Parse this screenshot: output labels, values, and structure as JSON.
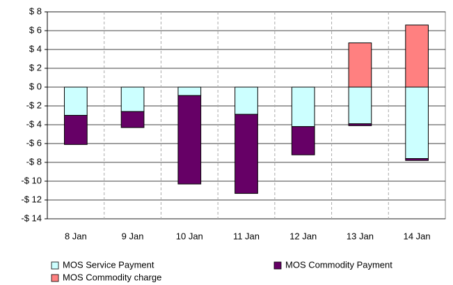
{
  "chart_data": {
    "type": "stacked-bar",
    "categories": [
      "8 Jan",
      "9 Jan",
      "10 Jan",
      "11 Jan",
      "12 Jan",
      "13 Jan",
      "14 Jan"
    ],
    "series": [
      {
        "name": "MOS Service Payment",
        "color": "#ccffff",
        "values": [
          -3,
          -2.6,
          -0.9,
          -2.9,
          -4.2,
          -3.9,
          -7.6
        ]
      },
      {
        "name": "MOS Commodity Payment",
        "color": "#660066",
        "values": [
          -3.1,
          -1.7,
          -9.4,
          -8.4,
          -3.0,
          -0.2,
          -0.2
        ]
      },
      {
        "name": "MOS Commodity charge",
        "color": "#ff8080",
        "values": [
          0,
          0,
          0,
          0,
          0,
          4.7,
          6.6
        ]
      }
    ],
    "ylim": [
      -14,
      8
    ],
    "yticks": [
      {
        "value": -14,
        "label": "-$ 14"
      },
      {
        "value": -12,
        "label": "-$ 12"
      },
      {
        "value": -10,
        "label": "-$ 10"
      },
      {
        "value": -8,
        "label": "-$ 8"
      },
      {
        "value": -6,
        "label": "-$ 6"
      },
      {
        "value": -4,
        "label": "-$ 4"
      },
      {
        "value": -2,
        "label": "-$ 2"
      },
      {
        "value": 0,
        "label": "$ 0"
      },
      {
        "value": 2,
        "label": "$ 2"
      },
      {
        "value": 4,
        "label": "$ 4"
      },
      {
        "value": 6,
        "label": "$ 6"
      },
      {
        "value": 8,
        "label": "$ 8"
      }
    ],
    "grid": true,
    "legend": "bottom"
  }
}
